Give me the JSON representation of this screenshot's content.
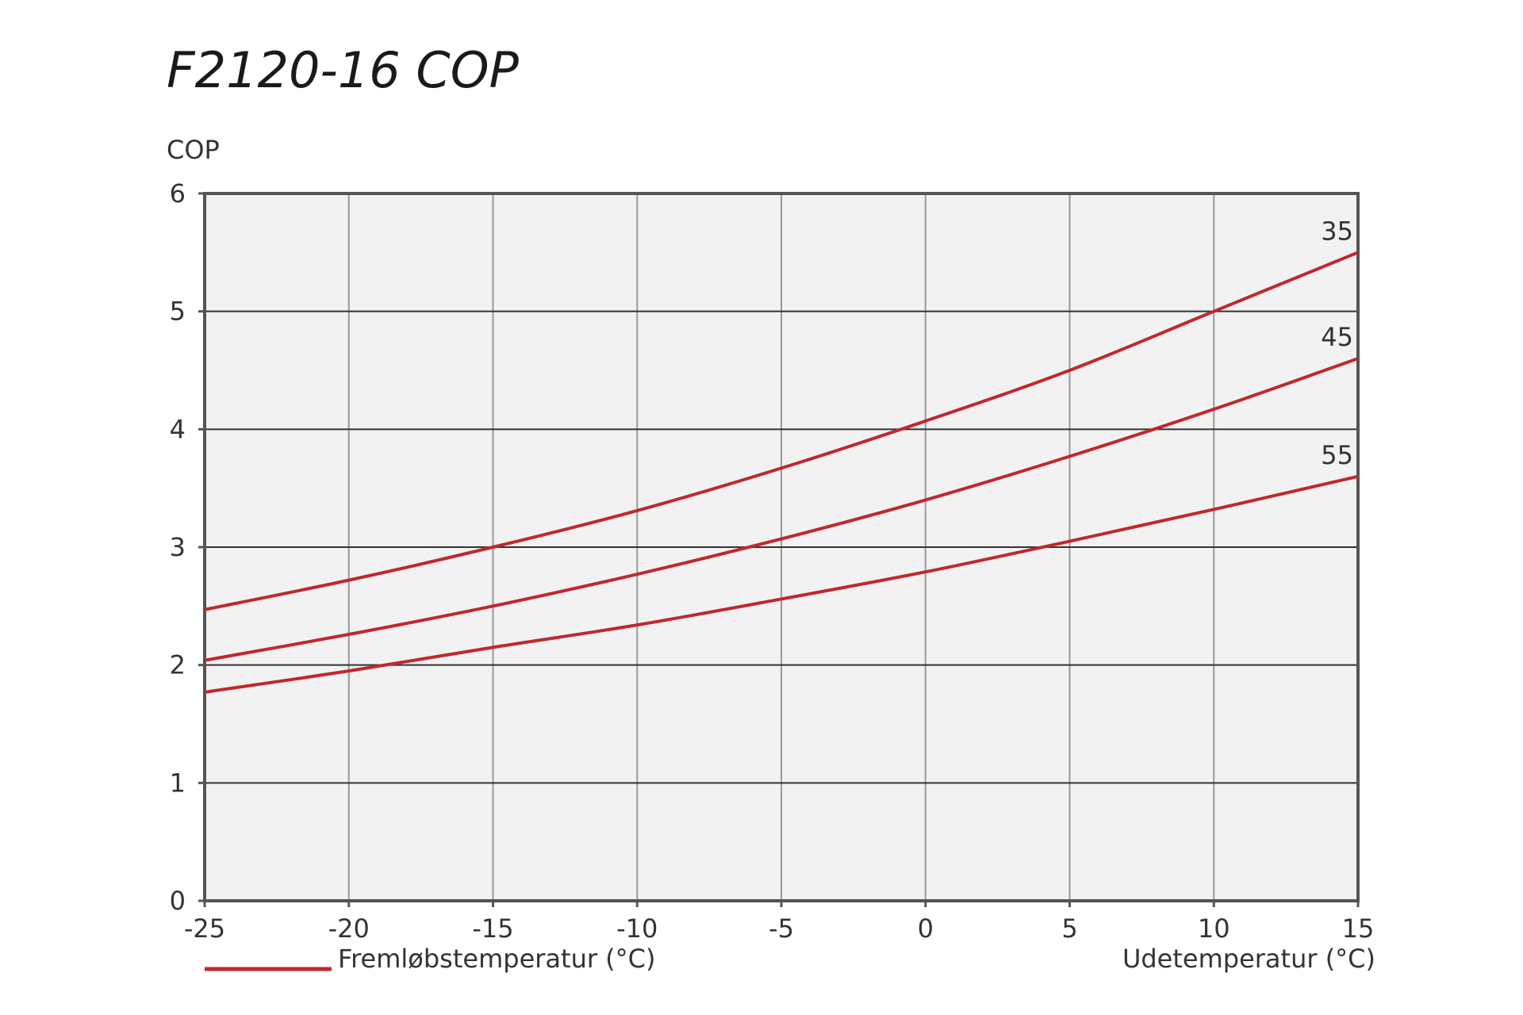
{
  "title": "F2120-16 COP",
  "colors": {
    "plot_background": "#f2f2f2",
    "grid": "#999999",
    "hgrid": "#333333",
    "axis": "#555555",
    "series": "#c0282d"
  },
  "chart_data": {
    "type": "line",
    "title": "F2120-16 COP",
    "ylabel": "COP",
    "xlabel": "Udetemperatur (°C)",
    "legend_label": "Fremløbstemperatur (°C)",
    "xlim": [
      -25,
      15
    ],
    "ylim": [
      0,
      6
    ],
    "x_ticks": [
      -25,
      -20,
      -15,
      -10,
      -5,
      0,
      5,
      10,
      15
    ],
    "x_tick_labels": [
      "-25",
      "-20",
      "-15",
      "-10",
      "-5",
      "0",
      "5",
      "10",
      "15"
    ],
    "y_ticks": [
      0,
      1,
      2,
      3,
      4,
      5,
      6
    ],
    "y_tick_labels": [
      "0",
      "1",
      "2",
      "3",
      "4",
      "5",
      "6"
    ],
    "grid": true,
    "x": [
      -25,
      -20,
      -15,
      -10,
      -5,
      0,
      5,
      10,
      15
    ],
    "series": [
      {
        "name": "35",
        "values": [
          2.47,
          2.72,
          3.0,
          3.31,
          3.67,
          4.07,
          4.5,
          5.0,
          5.5
        ]
      },
      {
        "name": "45",
        "values": [
          2.04,
          2.26,
          2.5,
          2.77,
          3.07,
          3.4,
          3.77,
          4.17,
          4.6
        ]
      },
      {
        "name": "55",
        "values": [
          1.77,
          1.95,
          2.15,
          2.34,
          2.56,
          2.79,
          3.05,
          3.32,
          3.6
        ]
      }
    ]
  }
}
